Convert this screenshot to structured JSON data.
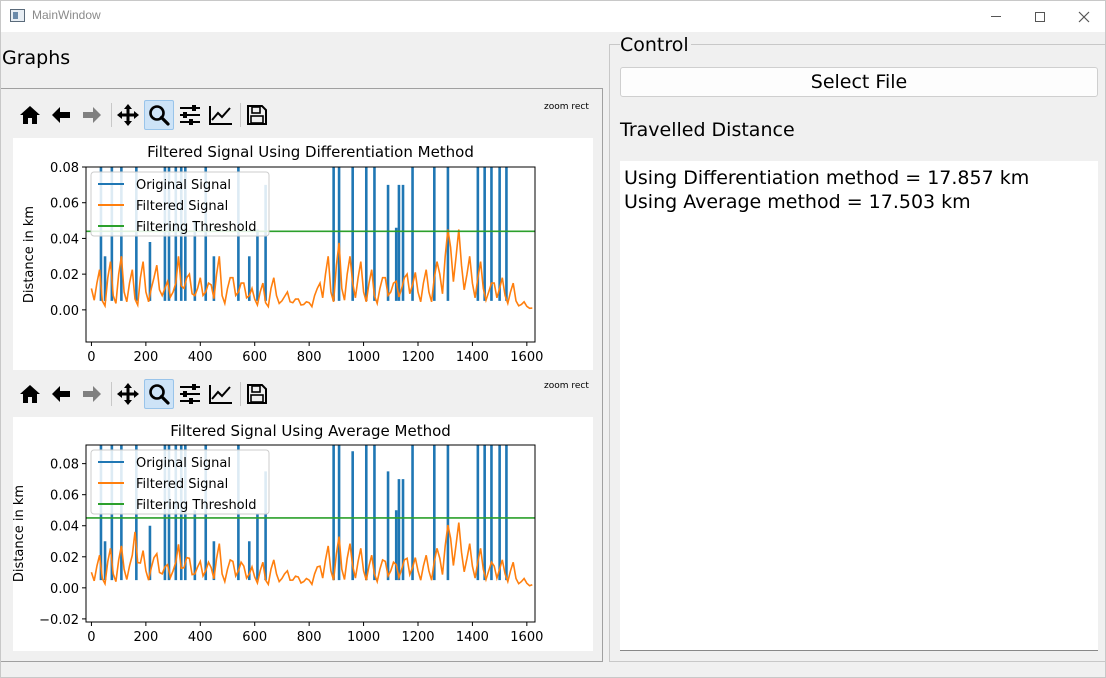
{
  "window": {
    "title": "MainWindow",
    "minimize_icon": "minimize-icon",
    "maximize_icon": "maximize-icon",
    "close_icon": "close-icon"
  },
  "graphs": {
    "label": "Graphs",
    "toolbar": {
      "buttons": [
        "home-icon",
        "back-arrow-icon",
        "forward-arrow-icon",
        "pan-icon",
        "zoom-icon",
        "configure-subplots-icon",
        "edit-axis-icon",
        "save-icon"
      ],
      "mode_label": "zoom rect"
    }
  },
  "control": {
    "label": "Control",
    "select_file_label": "Select File",
    "distance_label": "Travelled Distance",
    "results": [
      "Using Differentiation method = 17.857 km",
      "Using Average method = 17.503 km"
    ]
  },
  "colors": {
    "original": "#1f77b4",
    "filtered": "#ff7f0e",
    "threshold": "#2ca02c",
    "toolbar_active": "#cde3f7"
  },
  "chart_data": [
    {
      "type": "line",
      "title": "Filtered Signal Using Differentiation Method",
      "xlabel": "",
      "ylabel": "Distance in km",
      "xlim": [
        -20,
        1630
      ],
      "ylim": [
        -0.018,
        0.08
      ],
      "xticks": [
        0,
        200,
        400,
        600,
        800,
        1000,
        1200,
        1400,
        1600
      ],
      "xtick_labels": [
        "0",
        "200",
        "400",
        "600",
        "800",
        "1000",
        "1200",
        "1400",
        "1600"
      ],
      "yticks": [
        0.0,
        0.02,
        0.04,
        0.06,
        0.08
      ],
      "ytick_labels": [
        "0.00",
        "0.02",
        "0.04",
        "0.06",
        "0.08"
      ],
      "legend": "upper-left",
      "series": [
        {
          "name": "Original Signal",
          "spikes": [
            {
              "x": 35,
              "y": 0.08
            },
            {
              "x": 50,
              "y": 0.03
            },
            {
              "x": 75,
              "y": 0.08
            },
            {
              "x": 110,
              "y": 0.08
            },
            {
              "x": 165,
              "y": 0.08
            },
            {
              "x": 215,
              "y": 0.038
            },
            {
              "x": 270,
              "y": 0.08
            },
            {
              "x": 285,
              "y": 0.08
            },
            {
              "x": 310,
              "y": 0.08
            },
            {
              "x": 330,
              "y": 0.08
            },
            {
              "x": 345,
              "y": 0.08
            },
            {
              "x": 380,
              "y": 0.05
            },
            {
              "x": 420,
              "y": 0.08
            },
            {
              "x": 450,
              "y": 0.03
            },
            {
              "x": 540,
              "y": 0.08
            },
            {
              "x": 580,
              "y": 0.03
            },
            {
              "x": 610,
              "y": 0.045
            },
            {
              "x": 640,
              "y": 0.07
            },
            {
              "x": 890,
              "y": 0.08
            },
            {
              "x": 910,
              "y": 0.08
            },
            {
              "x": 960,
              "y": 0.08
            },
            {
              "x": 1010,
              "y": 0.08
            },
            {
              "x": 1040,
              "y": 0.08
            },
            {
              "x": 1090,
              "y": 0.07
            },
            {
              "x": 1120,
              "y": 0.046
            },
            {
              "x": 1130,
              "y": 0.07
            },
            {
              "x": 1145,
              "y": 0.07
            },
            {
              "x": 1180,
              "y": 0.08
            },
            {
              "x": 1260,
              "y": 0.08
            },
            {
              "x": 1310,
              "y": 0.08
            },
            {
              "x": 1420,
              "y": 0.08
            },
            {
              "x": 1445,
              "y": 0.08
            },
            {
              "x": 1470,
              "y": 0.08
            },
            {
              "x": 1500,
              "y": 0.08
            },
            {
              "x": 1525,
              "y": 0.08
            }
          ]
        },
        {
          "name": "Filtered Signal",
          "x": [
            0,
            20,
            40,
            60,
            80,
            100,
            120,
            140,
            160,
            180,
            200,
            220,
            240,
            260,
            280,
            300,
            320,
            340,
            360,
            380,
            400,
            420,
            440,
            460,
            480,
            500,
            520,
            540,
            560,
            580,
            600,
            620,
            640,
            660,
            680,
            700,
            720,
            740,
            760,
            780,
            800,
            820,
            840,
            860,
            880,
            900,
            920,
            940,
            960,
            980,
            1000,
            1020,
            1040,
            1060,
            1080,
            1100,
            1120,
            1140,
            1160,
            1180,
            1200,
            1220,
            1240,
            1260,
            1280,
            1300,
            1320,
            1340,
            1360,
            1380,
            1400,
            1420,
            1440,
            1460,
            1480,
            1500,
            1520,
            1540,
            1560,
            1580,
            1600,
            1620
          ],
          "y": [
            0.012,
            0.015,
            0.005,
            0.018,
            0.008,
            0.02,
            0.01,
            0.015,
            0.006,
            0.018,
            0.01,
            0.012,
            0.025,
            0.008,
            0.016,
            0.01,
            0.03,
            0.012,
            0.02,
            0.008,
            0.018,
            0.01,
            0.014,
            0.02,
            0.008,
            0.012,
            0.018,
            0.01,
            0.015,
            0.008,
            0.006,
            0.01,
            0.004,
            0.012,
            0.008,
            0.005,
            0.01,
            0.004,
            0.006,
            0.003,
            0.004,
            0.008,
            0.015,
            0.02,
            0.01,
            0.025,
            0.012,
            0.02,
            0.015,
            0.018,
            0.01,
            0.015,
            0.008,
            0.012,
            0.018,
            0.01,
            0.016,
            0.012,
            0.02,
            0.014,
            0.01,
            0.015,
            0.01,
            0.018,
            0.02,
            0.03,
            0.035,
            0.03,
            0.025,
            0.02,
            0.015,
            0.018,
            0.012,
            0.01,
            0.015,
            0.012,
            0.008,
            0.01,
            0.005,
            0.003,
            0.002,
            0.001
          ]
        },
        {
          "name": "Filtering Threshold",
          "y": 0.044
        }
      ]
    },
    {
      "type": "line",
      "title": "Filtered Signal Using Average Method",
      "xlabel": "",
      "ylabel": "Distance in km",
      "xlim": [
        -20,
        1630
      ],
      "ylim": [
        -0.022,
        0.092
      ],
      "xticks": [
        0,
        200,
        400,
        600,
        800,
        1000,
        1200,
        1400,
        1600
      ],
      "xtick_labels": [
        "0",
        "200",
        "400",
        "600",
        "800",
        "1000",
        "1200",
        "1400",
        "1600"
      ],
      "yticks": [
        -0.02,
        0.0,
        0.02,
        0.04,
        0.06,
        0.08
      ],
      "ytick_labels": [
        "−0.02",
        "0.00",
        "0.02",
        "0.04",
        "0.06",
        "0.08"
      ],
      "legend": "upper-left",
      "series": [
        {
          "name": "Original Signal",
          "spikes": [
            {
              "x": 35,
              "y": 0.092
            },
            {
              "x": 50,
              "y": 0.03
            },
            {
              "x": 75,
              "y": 0.092
            },
            {
              "x": 110,
              "y": 0.092
            },
            {
              "x": 165,
              "y": 0.092
            },
            {
              "x": 215,
              "y": 0.04
            },
            {
              "x": 270,
              "y": 0.092
            },
            {
              "x": 285,
              "y": 0.092
            },
            {
              "x": 310,
              "y": 0.092
            },
            {
              "x": 330,
              "y": 0.092
            },
            {
              "x": 345,
              "y": 0.092
            },
            {
              "x": 380,
              "y": 0.05
            },
            {
              "x": 420,
              "y": 0.092
            },
            {
              "x": 450,
              "y": 0.03
            },
            {
              "x": 540,
              "y": 0.092
            },
            {
              "x": 580,
              "y": 0.03
            },
            {
              "x": 610,
              "y": 0.048
            },
            {
              "x": 640,
              "y": 0.075
            },
            {
              "x": 890,
              "y": 0.092
            },
            {
              "x": 910,
              "y": 0.092
            },
            {
              "x": 960,
              "y": 0.088
            },
            {
              "x": 1010,
              "y": 0.092
            },
            {
              "x": 1040,
              "y": 0.092
            },
            {
              "x": 1090,
              "y": 0.075
            },
            {
              "x": 1120,
              "y": 0.05
            },
            {
              "x": 1130,
              "y": 0.07
            },
            {
              "x": 1145,
              "y": 0.07
            },
            {
              "x": 1180,
              "y": 0.092
            },
            {
              "x": 1260,
              "y": 0.092
            },
            {
              "x": 1310,
              "y": 0.092
            },
            {
              "x": 1420,
              "y": 0.092
            },
            {
              "x": 1445,
              "y": 0.092
            },
            {
              "x": 1470,
              "y": 0.092
            },
            {
              "x": 1500,
              "y": 0.092
            },
            {
              "x": 1525,
              "y": 0.092
            }
          ]
        },
        {
          "name": "Filtered Signal",
          "x": [
            0,
            20,
            40,
            60,
            80,
            100,
            120,
            140,
            160,
            180,
            200,
            220,
            240,
            260,
            280,
            300,
            320,
            340,
            360,
            380,
            400,
            420,
            440,
            460,
            480,
            500,
            520,
            540,
            560,
            580,
            600,
            620,
            640,
            660,
            680,
            700,
            720,
            740,
            760,
            780,
            800,
            820,
            840,
            860,
            880,
            900,
            920,
            940,
            960,
            980,
            1000,
            1020,
            1040,
            1060,
            1080,
            1100,
            1120,
            1140,
            1160,
            1180,
            1200,
            1220,
            1240,
            1260,
            1280,
            1300,
            1320,
            1340,
            1360,
            1380,
            1400,
            1420,
            1440,
            1460,
            1480,
            1500,
            1520,
            1540,
            1560,
            1580,
            1600,
            1620
          ],
          "y": [
            0.01,
            0.014,
            0.006,
            0.017,
            0.009,
            0.018,
            0.012,
            0.014,
            0.036,
            0.016,
            0.011,
            0.013,
            0.022,
            0.009,
            0.015,
            0.011,
            0.028,
            0.013,
            0.019,
            0.009,
            0.017,
            0.011,
            0.013,
            0.019,
            0.009,
            0.012,
            0.017,
            0.011,
            0.014,
            0.009,
            0.007,
            0.011,
            0.005,
            0.012,
            0.009,
            0.006,
            0.011,
            0.005,
            0.007,
            0.004,
            0.005,
            0.009,
            0.014,
            0.018,
            0.011,
            0.022,
            0.012,
            0.019,
            0.014,
            0.017,
            0.011,
            0.014,
            0.009,
            0.012,
            0.017,
            0.011,
            0.015,
            0.012,
            0.019,
            0.013,
            0.011,
            0.014,
            0.011,
            0.017,
            0.019,
            0.027,
            0.032,
            0.028,
            0.023,
            0.019,
            0.014,
            0.017,
            0.012,
            0.011,
            0.014,
            0.012,
            0.009,
            0.011,
            0.006,
            0.004,
            0.003,
            0.002
          ]
        },
        {
          "name": "Filtering Threshold",
          "y": 0.045
        }
      ]
    }
  ]
}
